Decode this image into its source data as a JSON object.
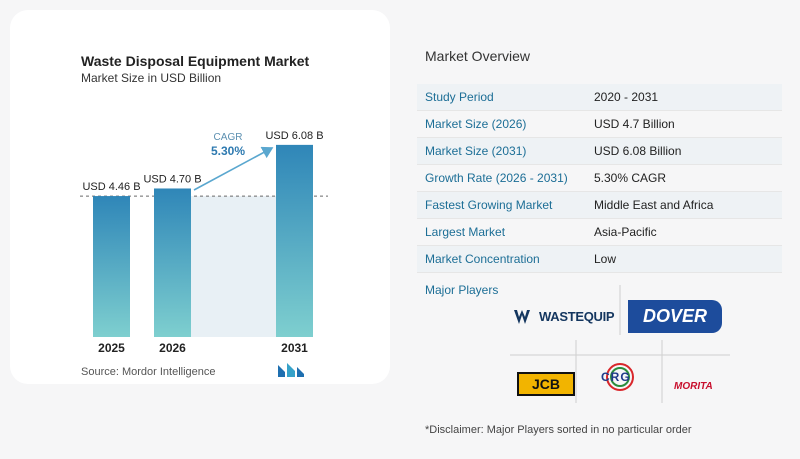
{
  "chart_data": {
    "type": "bar",
    "title": "Waste Disposal Equipment Market",
    "subtitle": "Market Size in USD Billion",
    "categories": [
      "2025",
      "2026",
      "2031"
    ],
    "values": [
      4.46,
      4.7,
      6.08
    ],
    "data_labels": [
      "USD 4.46 B",
      "USD 4.70 B",
      "USD 6.08 B"
    ],
    "cagr_label": "CAGR",
    "cagr_value": "5.30%",
    "grid": false,
    "source": "Source:  Mordor Intelligence",
    "bar_color": "#5fa8c8"
  },
  "overview": {
    "title": "Market Overview",
    "rows": [
      {
        "k": "Study Period",
        "v": "2020 - 2031"
      },
      {
        "k": "Market Size (2026)",
        "v": "USD 4.7 Billion"
      },
      {
        "k": "Market Size (2031)",
        "v": "USD 6.08 Billion"
      },
      {
        "k": "Growth Rate (2026 - 2031)",
        "v": "5.30% CAGR"
      },
      {
        "k": "Fastest Growing Market",
        "v": "Middle East and Africa"
      },
      {
        "k": "Largest Market",
        "v": "Asia-Pacific"
      },
      {
        "k": "Market Concentration",
        "v": "Low"
      }
    ],
    "players_title": "Major Players",
    "players": [
      "WASTEQUIP",
      "DOVER",
      "JCB",
      "CRG",
      "MORITA"
    ],
    "disclaimer": "*Disclaimer: Major Players sorted in no particular order"
  },
  "colors": {
    "accent": "#1c6e96",
    "dover_blue": "#1d4c9c"
  }
}
